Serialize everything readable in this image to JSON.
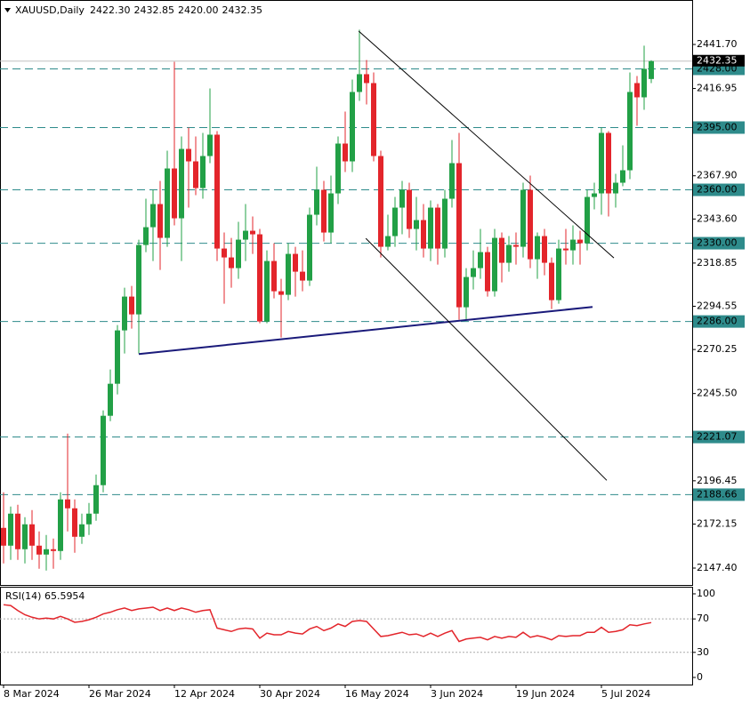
{
  "chart_data": {
    "type": "candlestick",
    "title": "XAUUSD,Daily",
    "ohlc_labels": [
      "2422.30",
      "2432.85",
      "2420.00",
      "2432.35"
    ],
    "up_color": "#22a046",
    "down_color": "#e3252b",
    "open": [
      2170,
      2160,
      2178,
      2158,
      2172,
      2160,
      2155,
      2158,
      2157,
      2186,
      2181,
      2165,
      2172,
      2178,
      2194,
      2233,
      2251,
      2281,
      2300,
      2290,
      2329,
      2339,
      2352,
      2333,
      2372,
      2344,
      2383,
      2376,
      2361,
      2379,
      2391,
      2327,
      2322,
      2316,
      2332,
      2337,
      2335,
      2286,
      2320,
      2303,
      2301,
      2324,
      2314,
      2309,
      2346,
      2360,
      2336,
      2358,
      2386,
      2376,
      2415,
      2425,
      2420,
      2379,
      2328,
      2334,
      2350,
      2360,
      2338,
      2343,
      2327,
      2350,
      2327,
      2355,
      2375,
      2294,
      2311,
      2316,
      2325,
      2303,
      2333,
      2319,
      2329,
      2328,
      2360,
      2321,
      2334,
      2319,
      2298,
      2327,
      2326,
      2332,
      2330,
      2356,
      2358,
      2392,
      2358,
      2364,
      2371,
      2420,
      2412,
      2422.3
    ],
    "high": [
      2190,
      2182,
      2183,
      2176,
      2180,
      2168,
      2166,
      2164,
      2190,
      2223,
      2186,
      2178,
      2184,
      2200,
      2236,
      2259,
      2284,
      2305,
      2306,
      2332,
      2355,
      2360,
      2365,
      2382,
      2432,
      2390,
      2395,
      2390,
      2392,
      2417,
      2393,
      2336,
      2333,
      2342,
      2352,
      2345,
      2338,
      2326,
      2330,
      2310,
      2330,
      2328,
      2326,
      2350,
      2373,
      2365,
      2368,
      2390,
      2404,
      2422,
      2450,
      2433,
      2426,
      2382,
      2346,
      2356,
      2365,
      2364,
      2356,
      2352,
      2354,
      2352,
      2360,
      2388,
      2392,
      2316,
      2326,
      2338,
      2328,
      2338,
      2336,
      2334,
      2336,
      2364,
      2368,
      2336,
      2338,
      2322,
      2332,
      2338,
      2340,
      2337,
      2360,
      2364,
      2395,
      2393,
      2369,
      2385,
      2426,
      2424,
      2441,
      2432.85
    ],
    "low": [
      2150,
      2152,
      2152,
      2150,
      2152,
      2147,
      2146,
      2147,
      2152,
      2168,
      2156,
      2161,
      2166,
      2174,
      2190,
      2230,
      2245,
      2268,
      2282,
      2268,
      2325,
      2320,
      2315,
      2328,
      2340,
      2320,
      2350,
      2357,
      2355,
      2375,
      2320,
      2296,
      2305,
      2310,
      2320,
      2324,
      2285,
      2285,
      2299,
      2277,
      2298,
      2300,
      2303,
      2306,
      2340,
      2331,
      2330,
      2352,
      2370,
      2370,
      2410,
      2408,
      2376,
      2322,
      2326,
      2328,
      2335,
      2333,
      2326,
      2322,
      2320,
      2318,
      2322,
      2350,
      2287,
      2287,
      2304,
      2310,
      2300,
      2300,
      2308,
      2314,
      2318,
      2322,
      2316,
      2310,
      2312,
      2293,
      2296,
      2318,
      2318,
      2318,
      2326,
      2349,
      2346,
      2345,
      2350,
      2362,
      2366,
      2396,
      2405,
      2420
    ],
    "close": [
      2160,
      2178,
      2158,
      2172,
      2160,
      2155,
      2158,
      2157,
      2186,
      2181,
      2165,
      2172,
      2178,
      2194,
      2233,
      2251,
      2281,
      2300,
      2290,
      2329,
      2339,
      2352,
      2333,
      2372,
      2344,
      2383,
      2376,
      2361,
      2379,
      2391,
      2327,
      2322,
      2316,
      2332,
      2337,
      2335,
      2286,
      2320,
      2303,
      2301,
      2324,
      2314,
      2309,
      2346,
      2360,
      2336,
      2358,
      2386,
      2376,
      2415,
      2425,
      2420,
      2379,
      2328,
      2334,
      2350,
      2360,
      2338,
      2343,
      2327,
      2350,
      2327,
      2355,
      2375,
      2294,
      2311,
      2316,
      2325,
      2303,
      2333,
      2319,
      2329,
      2328,
      2360,
      2321,
      2334,
      2319,
      2298,
      2327,
      2326,
      2332,
      2330,
      2356,
      2358,
      2392,
      2358,
      2364,
      2371,
      2415,
      2412,
      2428,
      2432.35
    ],
    "xlim": [
      -0.5,
      96.75
    ],
    "xticks": [
      {
        "value": 0,
        "label": "8 Mar 2024"
      },
      {
        "value": 12,
        "label": "26 Mar 2024"
      },
      {
        "value": 24,
        "label": "12 Apr 2024"
      },
      {
        "value": 36,
        "label": "30 Apr 2024"
      },
      {
        "value": 48,
        "label": "16 May 2024"
      },
      {
        "value": 60,
        "label": "3 Jun 2024"
      },
      {
        "value": 72,
        "label": "19 Jun 2024"
      },
      {
        "value": 84,
        "label": "5 Jul 2024"
      }
    ],
    "ylim": [
      2137.9,
      2466.7
    ],
    "yticks": [
      {
        "value": 2441.7,
        "label": "2441.70"
      },
      {
        "value": 2416.95,
        "label": "2416.95"
      },
      {
        "value": 2367.9,
        "label": "2367.90"
      },
      {
        "value": 2343.6,
        "label": "2343.60"
      },
      {
        "value": 2318.85,
        "label": "2318.85"
      },
      {
        "value": 2294.55,
        "label": "2294.55"
      },
      {
        "value": 2270.25,
        "label": "2270.25"
      },
      {
        "value": 2245.5,
        "label": "2245.50"
      },
      {
        "value": 2196.45,
        "label": "2196.45"
      },
      {
        "value": 2172.15,
        "label": "2172.15"
      },
      {
        "value": 2147.4,
        "label": "2147.40"
      }
    ],
    "levels": [
      {
        "value": 2428,
        "label": "2428.00"
      },
      {
        "value": 2395,
        "label": "2395.00"
      },
      {
        "value": 2360,
        "label": "2360.00"
      },
      {
        "value": 2330,
        "label": "2330.00"
      },
      {
        "value": 2286,
        "label": "2286.00"
      },
      {
        "value": 2221.07,
        "label": "2221.07"
      },
      {
        "value": 2188.66,
        "label": "2188.66"
      }
    ],
    "level_color": "#2e8b8b",
    "last_price": {
      "value": 2432.35,
      "label": "2432.35"
    },
    "trendlines": [
      {
        "x": [
          19,
          82.75
        ],
        "y": [
          2267.7,
          2294.2
        ],
        "color": "#1a1a7a"
      },
      {
        "x": [
          49.9,
          85.75
        ],
        "y": [
          2449.2,
          2321.7
        ],
        "color": "#000000"
      },
      {
        "x": [
          50.9,
          84.75
        ],
        "y": [
          2332.7,
          2196.7
        ],
        "color": "#000000"
      }
    ],
    "rsi": {
      "title": "RSI(14) 65.5954",
      "color": "#e3252b",
      "values": [
        87,
        86,
        80,
        75,
        72,
        70,
        71,
        70,
        73,
        70,
        66,
        67,
        69,
        72,
        76,
        78,
        81,
        83,
        80,
        82,
        83,
        84,
        80,
        83,
        80,
        83,
        81,
        78,
        80,
        81,
        59,
        57,
        55,
        58,
        59,
        58,
        47,
        53,
        51,
        51,
        55,
        53,
        52,
        58,
        61,
        56,
        59,
        64,
        61,
        67,
        68,
        67,
        58,
        49,
        50,
        52,
        54,
        51,
        52,
        49,
        53,
        49,
        53,
        56,
        43,
        46,
        47,
        48,
        45,
        49,
        47,
        49,
        48,
        54,
        48,
        50,
        48,
        45,
        50,
        49,
        50,
        50,
        54,
        54,
        60,
        54,
        55,
        57,
        63,
        62,
        64,
        65.5954
      ],
      "ylim": [
        -8.5,
        107.4
      ],
      "yticks": [
        100,
        70,
        30,
        0
      ],
      "guide_levels": [
        70,
        30
      ]
    }
  }
}
